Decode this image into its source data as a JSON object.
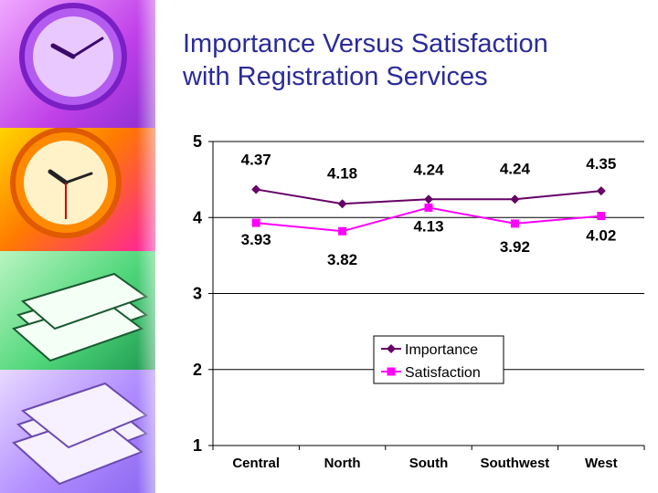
{
  "slide": {
    "title_line1": "Importance Versus Satisfaction",
    "title_line2": "with Registration Services"
  },
  "sidebar_icons": [
    "clock-icon",
    "clock-icon",
    "books-icon",
    "papers-icon"
  ],
  "chart_data": {
    "type": "line",
    "categories": [
      "Central",
      "North",
      "South",
      "Southwest",
      "West"
    ],
    "series": [
      {
        "name": "Importance",
        "values": [
          4.37,
          4.18,
          4.24,
          4.24,
          4.35
        ],
        "color": "#660066",
        "marker": "diamond"
      },
      {
        "name": "Satisfaction",
        "values": [
          3.93,
          3.82,
          4.13,
          3.92,
          4.02
        ],
        "color": "#ff00ff",
        "marker": "square"
      }
    ],
    "ylim": [
      1,
      5
    ],
    "yticks": [
      1,
      2,
      3,
      4,
      5
    ],
    "grid": true,
    "legend": "center-right"
  }
}
